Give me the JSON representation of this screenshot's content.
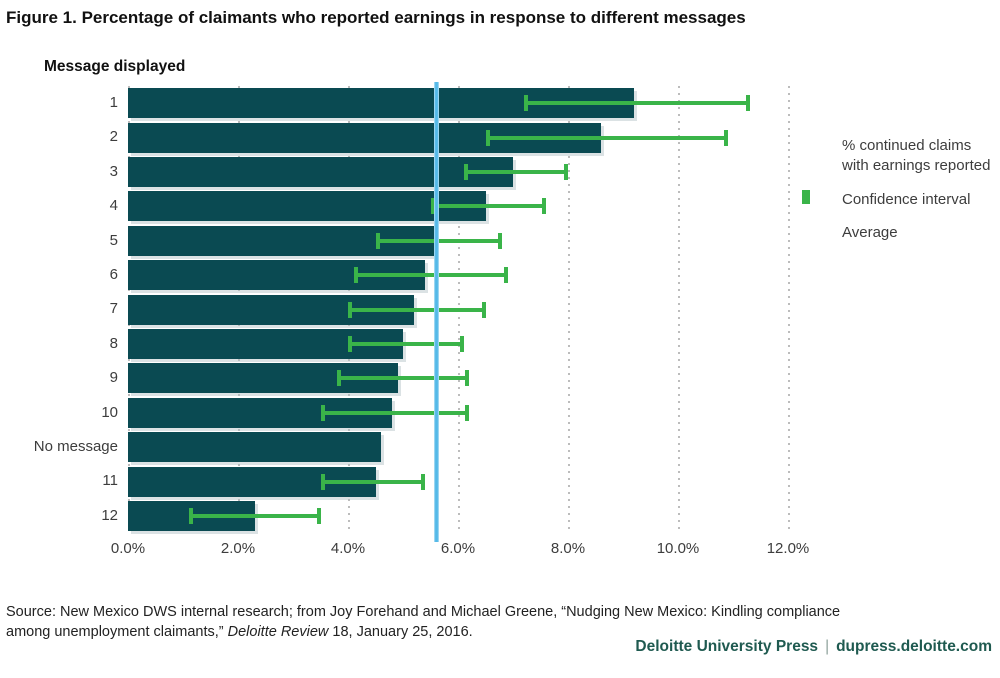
{
  "title": "Figure 1. Percentage of claimants who reported earnings in response to different messages",
  "chart_data": {
    "type": "bar",
    "orientation": "horizontal",
    "y_axis_title": "Message displayed",
    "categories": [
      "1",
      "2",
      "3",
      "4",
      "5",
      "6",
      "7",
      "8",
      "9",
      "10",
      "No message",
      "11",
      "12"
    ],
    "series": [
      {
        "name": "% continued claims with earnings reported",
        "values": [
          9.2,
          8.6,
          7.0,
          6.5,
          5.6,
          5.4,
          5.2,
          5.0,
          4.9,
          4.8,
          4.6,
          4.5,
          2.3
        ]
      }
    ],
    "confidence_intervals": [
      [
        7.2,
        11.3
      ],
      [
        6.5,
        10.9
      ],
      [
        6.1,
        8.0
      ],
      [
        5.5,
        7.6
      ],
      [
        4.5,
        6.8
      ],
      [
        4.1,
        6.9
      ],
      [
        4.0,
        6.5
      ],
      [
        4.0,
        6.1
      ],
      [
        3.8,
        6.2
      ],
      [
        3.5,
        6.2
      ],
      null,
      [
        3.5,
        5.4
      ],
      [
        1.1,
        3.5
      ]
    ],
    "average": 5.6,
    "xlim": [
      0,
      12
    ],
    "x_tick_labels": [
      "0.0%",
      "2.0%",
      "4.0%",
      "6.0%",
      "8.0%",
      "10.0%",
      "12.0%"
    ],
    "x_tick_values": [
      0,
      2,
      4,
      6,
      8,
      10,
      12
    ],
    "grid": "vertical-dotted",
    "legend_position": "right",
    "legend": [
      {
        "type": "bar",
        "label": "% continued claims with earnings reported"
      },
      {
        "type": "error-bar",
        "label": "Confidence interval"
      },
      {
        "type": "line",
        "label": "Average"
      }
    ],
    "colors": {
      "bar": "#0a4a52",
      "confidence_interval": "#3ab449",
      "average_line": "#54b9e8",
      "grid": "#bcbcbc"
    }
  },
  "source": {
    "line1": "Source: New Mexico DWS internal research; from Joy Forehand and Michael Greene, “Nudging New Mexico: Kindling compliance",
    "line2_pre": "among unemployment claimants,” ",
    "italic": "Deloitte Review",
    "line2_post": " 18, January 25, 2016."
  },
  "footer": {
    "brand": "Deloitte University Press",
    "separator": "|",
    "url": "dupress.deloitte.com"
  }
}
